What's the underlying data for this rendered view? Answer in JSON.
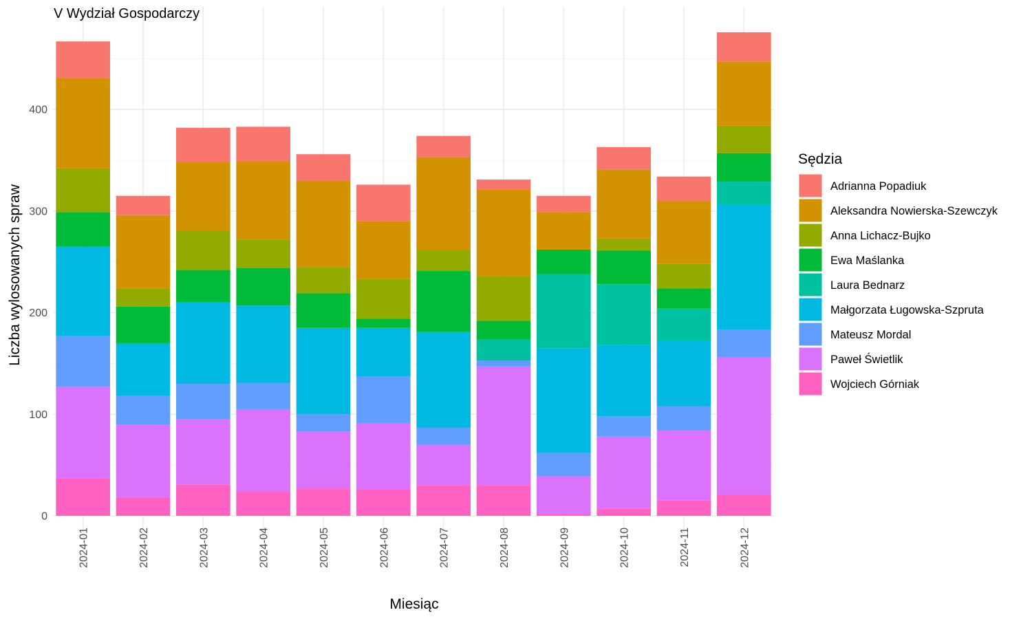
{
  "chart_data": {
    "type": "bar",
    "stacked": true,
    "title": "V Wydział Gospodarczy",
    "xlabel": "Miesiąc",
    "ylabel": "Liczba wylosowanych spraw",
    "ylim": [
      0,
      480
    ],
    "yticks": [
      0,
      100,
      200,
      300,
      400
    ],
    "grid": true,
    "legend_title": "Sędzia",
    "legend_position": "right",
    "categories": [
      "2024-01",
      "2024-02",
      "2024-03",
      "2024-04",
      "2024-05",
      "2024-06",
      "2024-07",
      "2024-08",
      "2024-09",
      "2024-10",
      "2024-11",
      "2024-12"
    ],
    "series": [
      {
        "name": "Wojciech Górniak",
        "color": "#FF61C3",
        "values": [
          37,
          18,
          31,
          24,
          27,
          26,
          30,
          30,
          2,
          7,
          15,
          21
        ]
      },
      {
        "name": "Paweł Świetlik",
        "color": "#DB72FB",
        "values": [
          90,
          72,
          64,
          81,
          56,
          65,
          40,
          117,
          37,
          71,
          69,
          135
        ]
      },
      {
        "name": "Mateusz Mordal",
        "color": "#619CFF",
        "values": [
          50,
          28,
          35,
          26,
          17,
          46,
          17,
          6,
          23,
          20,
          24,
          27
        ]
      },
      {
        "name": "Małgorzata Ługowska-Szpruta",
        "color": "#00B9E3",
        "values": [
          88,
          52,
          80,
          76,
          85,
          48,
          94,
          0,
          103,
          70,
          64,
          123
        ]
      },
      {
        "name": "Laura Bednarz",
        "color": "#00C19F",
        "values": [
          0,
          0,
          0,
          0,
          0,
          0,
          0,
          21,
          73,
          60,
          32,
          23
        ]
      },
      {
        "name": "Ewa Maślanka",
        "color": "#00BA38",
        "values": [
          34,
          36,
          32,
          37,
          34,
          9,
          60,
          18,
          24,
          33,
          20,
          28
        ]
      },
      {
        "name": "Anna Lichacz-Bujko",
        "color": "#93AA00",
        "values": [
          43,
          18,
          39,
          28,
          26,
          39,
          21,
          44,
          0,
          12,
          24,
          27
        ]
      },
      {
        "name": "Aleksandra Nowierska-Szewczyk",
        "color": "#D39200",
        "values": [
          89,
          72,
          67,
          77,
          85,
          57,
          91,
          85,
          37,
          68,
          62,
          63
        ]
      },
      {
        "name": "Adrianna Popadiuk",
        "color": "#F8766D",
        "values": [
          36,
          19,
          34,
          34,
          26,
          36,
          21,
          10,
          16,
          22,
          24,
          29
        ]
      }
    ]
  }
}
